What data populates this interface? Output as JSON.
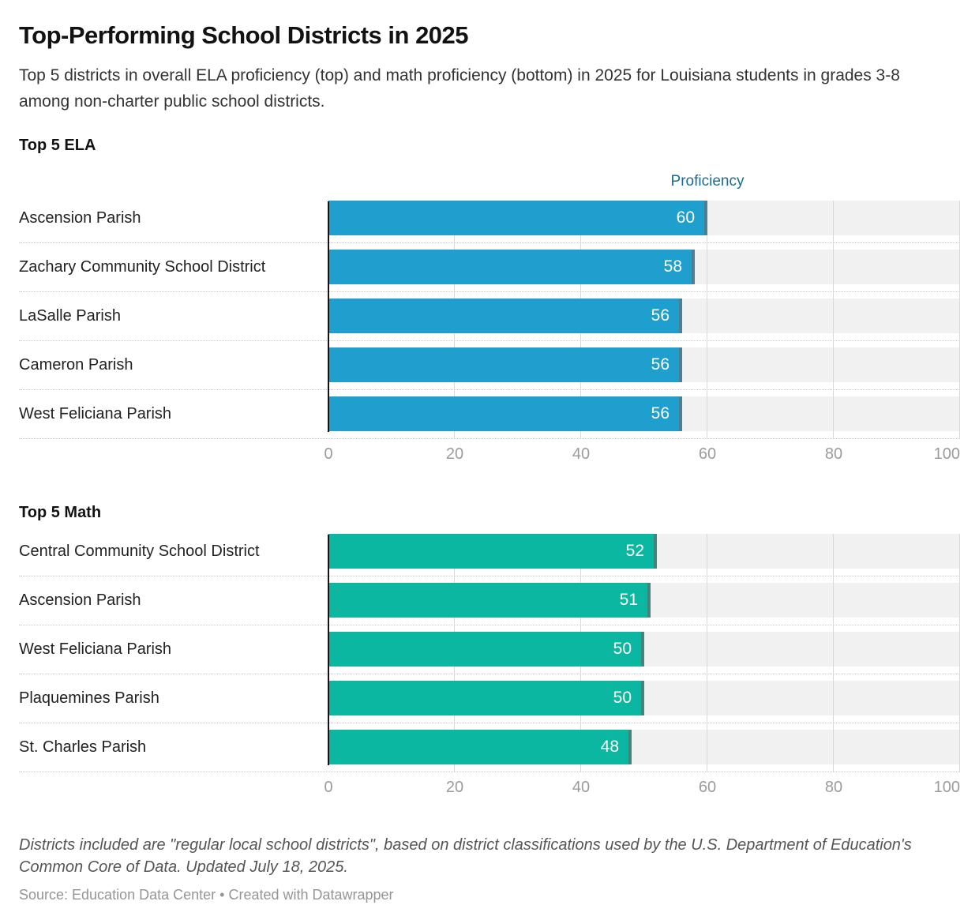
{
  "header": {
    "title": "Top-Performing School Districts in 2025",
    "subtitle": "Top 5 districts in overall ELA proficiency (top) and math proficiency (bottom) in 2025 for Louisiana students in grades 3-8 among non-charter public school districts."
  },
  "chart_data": [
    {
      "type": "bar",
      "title": "Top 5 ELA",
      "column_header": "Proficiency",
      "column_header_color": "#1b6b8c",
      "categories": [
        "Ascension Parish",
        "Zachary Community School District",
        "LaSalle Parish",
        "Cameron Parish",
        "West Feliciana Parish"
      ],
      "values": [
        60,
        58,
        56,
        56,
        56
      ],
      "value_labels": [
        "60",
        "58",
        "56",
        "56",
        "56"
      ],
      "xlim": [
        0,
        100
      ],
      "x_ticks": [
        0,
        20,
        40,
        60,
        80,
        100
      ],
      "bar_color": "#1e9fcd",
      "bar_cap_color": "#4d7e92",
      "grid": true,
      "legend_position": "none"
    },
    {
      "type": "bar",
      "title": "Top 5 Math",
      "column_header": "",
      "column_header_color": "",
      "categories": [
        "Central Community School District",
        "Ascension Parish",
        "West Feliciana Parish",
        "Plaquemines Parish",
        "St. Charles Parish"
      ],
      "values": [
        52,
        51,
        50,
        50,
        48
      ],
      "value_labels": [
        "52",
        "51",
        "50",
        "50",
        "48"
      ],
      "xlim": [
        0,
        100
      ],
      "x_ticks": [
        0,
        20,
        40,
        60,
        80,
        100
      ],
      "bar_color": "#0cb7a2",
      "bar_cap_color": "#40857e",
      "grid": true,
      "legend_position": "none"
    }
  ],
  "footer": {
    "note": "Districts included are \"regular local school districts\", based on district classifications used by the U.S. Department of Education's Common Core of Data. Updated July 18, 2025.",
    "source": "Source: Education Data Center • Created with Datawrapper"
  },
  "colors": {
    "ela_bar": "#1e9fcd",
    "math_bar": "#0cb7a2",
    "track": "#f1f1f1",
    "gridline": "#d9d9d9",
    "axis": "#141414",
    "tick_text": "#9b9b9b",
    "column_header_text": "#1b6b8c"
  }
}
